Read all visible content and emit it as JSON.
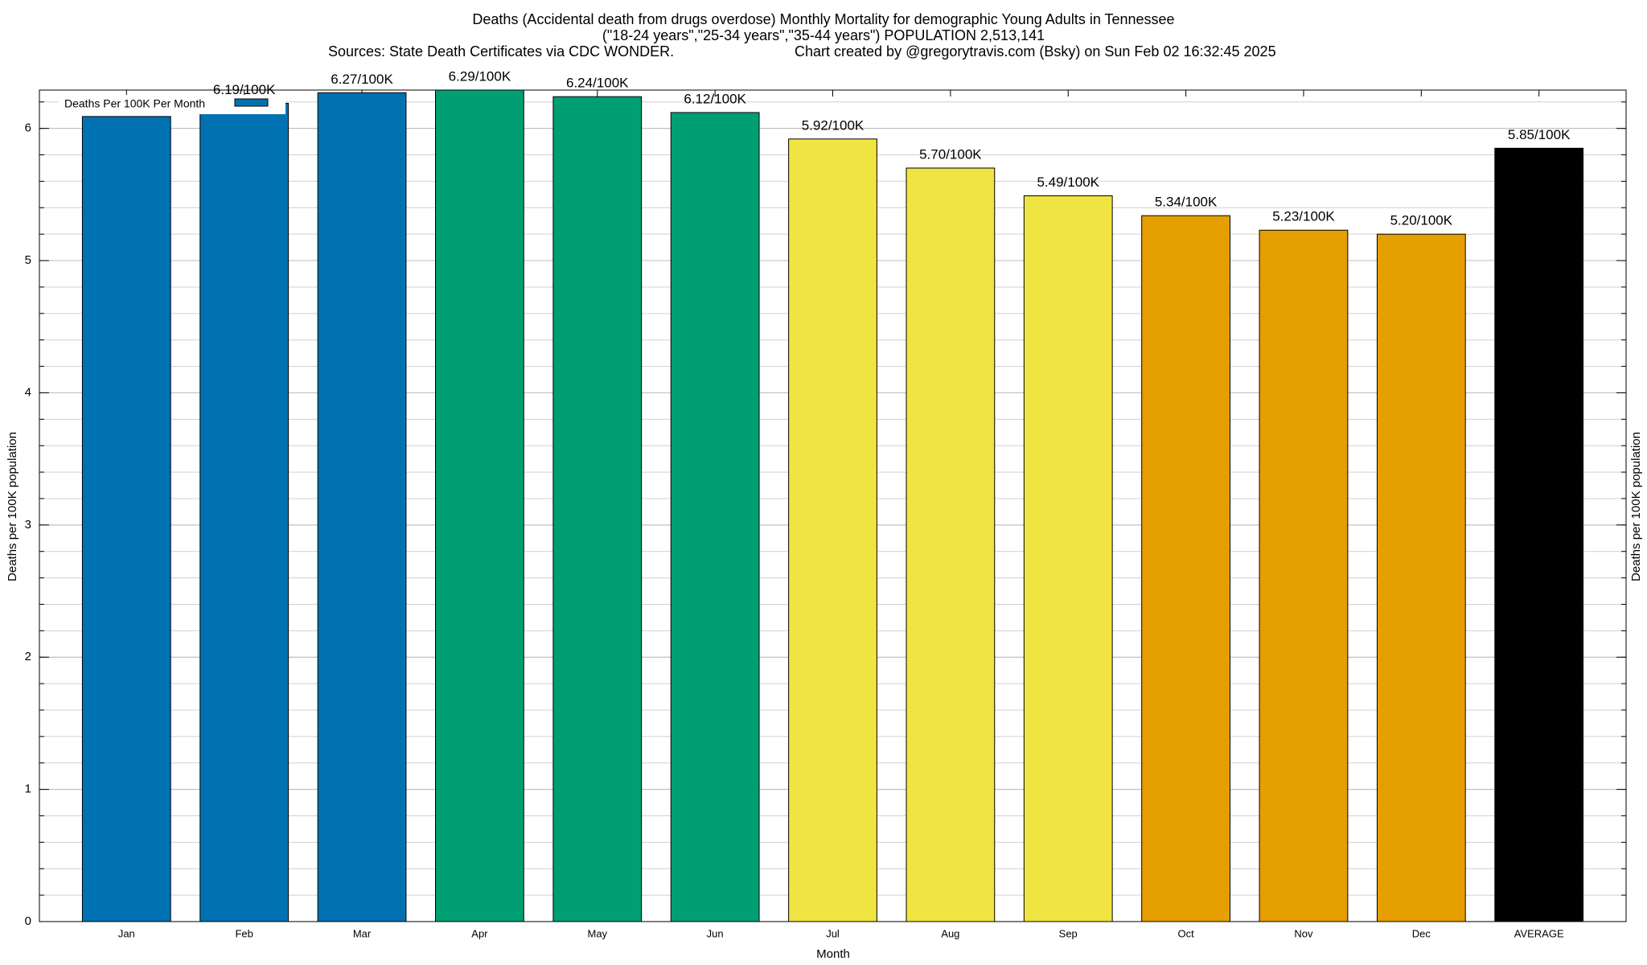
{
  "chart_data": {
    "type": "bar",
    "title": "Deaths (Accidental death from drugs overdose) Monthly Mortality for demographic Young Adults in Tennessee",
    "subtitle": "(\"18-24 years\",\"25-34 years\",\"35-44 years\") POPULATION 2,513,141",
    "source": "Sources: State Death Certificates via CDC WONDER.",
    "credit": "Chart created by @gregorytravis.com (Bsky) on Sun Feb 02 16:32:45 2025",
    "xlabel": "Month",
    "ylabel": "Deaths per 100K population",
    "categories": [
      "Jan",
      "Feb",
      "Mar",
      "Apr",
      "May",
      "Jun",
      "Jul",
      "Aug",
      "Sep",
      "Oct",
      "Nov",
      "Dec",
      "AVERAGE"
    ],
    "series": [
      {
        "name": "Deaths Per 100K Per Month",
        "color": "#0072b2",
        "values": [
          6.09,
          6.19,
          6.27,
          6.29,
          6.24,
          6.12,
          5.92,
          5.7,
          5.49,
          5.34,
          5.23,
          5.2,
          5.85
        ],
        "value_labels": [
          null,
          "6.19/100K",
          "6.27/100K",
          "6.29/100K",
          "6.24/100K",
          "6.12/100K",
          "5.92/100K",
          "5.70/100K",
          "5.49/100K",
          "5.34/100K",
          "5.23/100K",
          "5.20/100K",
          "5.85/100K"
        ],
        "colors": [
          "#0072b2",
          "#0072b2",
          "#0072b2",
          "#009e73",
          "#009e73",
          "#009e73",
          "#f0e442",
          "#f0e442",
          "#f0e442",
          "#e69f00",
          "#e69f00",
          "#e69f00",
          "#000000"
        ]
      }
    ],
    "ylim": [
      0,
      6.29
    ],
    "yticks": [
      0,
      1,
      2,
      3,
      4,
      5,
      6
    ],
    "minor_ytick_step": 0.2,
    "grid": true,
    "legend": "top-left"
  }
}
